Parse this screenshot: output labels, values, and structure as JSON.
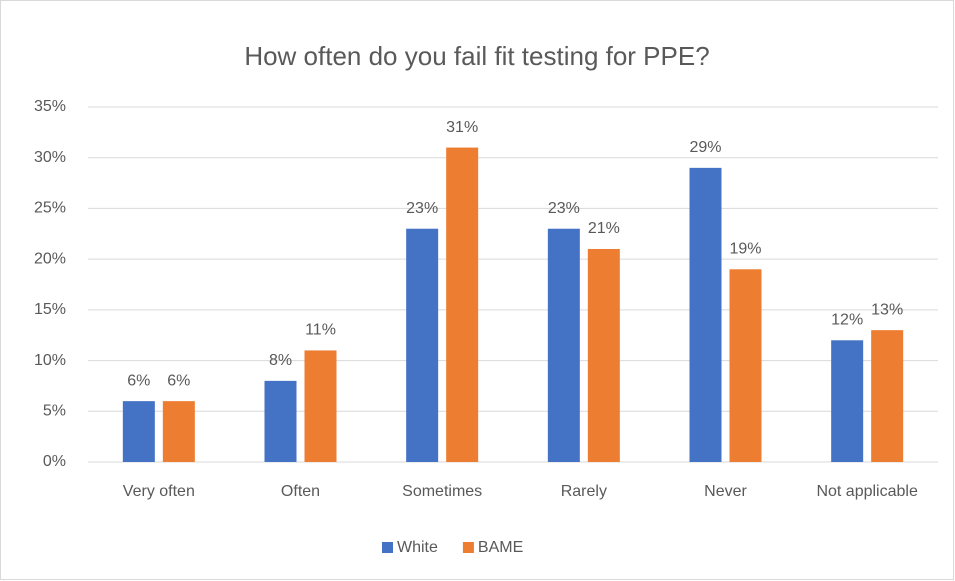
{
  "chart_data": {
    "type": "bar",
    "title": "How often do you fail fit testing for PPE?",
    "categories": [
      "Very often",
      "Often",
      "Sometimes",
      "Rarely",
      "Never",
      "Not applicable"
    ],
    "series": [
      {
        "name": "White",
        "color": "#4472c4",
        "values": [
          6,
          8,
          23,
          23,
          29,
          12
        ],
        "value_labels": [
          "6%",
          "8%",
          "23%",
          "23%",
          "29%",
          "12%"
        ]
      },
      {
        "name": "BAME",
        "color": "#ed7d31",
        "values": [
          6,
          11,
          31,
          21,
          19,
          13
        ],
        "value_labels": [
          "6%",
          "11%",
          "31%",
          "21%",
          "19%",
          "13%"
        ]
      }
    ],
    "ylim": [
      0,
      35
    ],
    "yticks": [
      {
        "value": 0,
        "label": "0%"
      },
      {
        "value": 5,
        "label": "5%"
      },
      {
        "value": 10,
        "label": "10%"
      },
      {
        "value": 15,
        "label": "15%"
      },
      {
        "value": 20,
        "label": "20%"
      },
      {
        "value": 25,
        "label": "25%"
      },
      {
        "value": 30,
        "label": "30%"
      },
      {
        "value": 35,
        "label": "35%"
      }
    ],
    "grid": true,
    "legend": "bottom"
  }
}
